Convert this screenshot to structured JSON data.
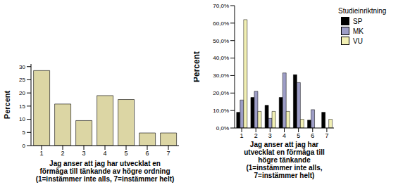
{
  "chart_data": [
    {
      "type": "bar",
      "ylabel": "Percent",
      "xlabel": [
        "Jag anser att jag har utvecklat en",
        "förmåga till tänkande av högre ordning",
        "(1=instämmer inte alls, 7=instämmer helt)"
      ],
      "categories": [
        "1",
        "2",
        "3",
        "4",
        "5",
        "6",
        "7"
      ],
      "values": [
        28.5,
        15.8,
        9.5,
        19,
        17.5,
        4.8,
        4.8
      ],
      "color": "#dcd6a4",
      "ylim": [
        0,
        31
      ],
      "yticks": [
        0,
        5,
        10,
        15,
        20,
        25,
        30
      ],
      "grid": false
    },
    {
      "type": "bar",
      "ylabel": "Percent",
      "xlabel": [
        "Jag anser att jag har",
        "utvecklat en förmåga till",
        "högre tänkande",
        "(1=instämmer inte alls,",
        "7=instämmer helt)"
      ],
      "categories": [
        "1",
        "2",
        "3",
        "4",
        "5",
        "6",
        "7"
      ],
      "series": [
        {
          "name": "SP",
          "color": "#000000",
          "values": [
            9,
            17.5,
            13,
            17.5,
            30.5,
            4.5,
            9
          ]
        },
        {
          "name": "MK",
          "color": "#9d9dc6",
          "values": [
            16,
            21,
            5.5,
            31.5,
            26,
            10.5,
            0
          ]
        },
        {
          "name": "VU",
          "color": "#f2f0b4",
          "values": [
            62,
            9.5,
            9.5,
            9.5,
            5,
            0,
            5
          ]
        }
      ],
      "legend_title": "Studieinriktning",
      "legend": "right",
      "ylim": [
        0,
        70
      ],
      "yticks": [
        {
          "value": 0,
          "label": "0,0%"
        },
        {
          "value": 10,
          "label": "10,0%"
        },
        {
          "value": 20,
          "label": "20,0%"
        },
        {
          "value": 30,
          "label": "30,0%"
        },
        {
          "value": 40,
          "label": "40,0%"
        },
        {
          "value": 50,
          "label": "50,0%"
        },
        {
          "value": 60,
          "label": "60,0%"
        },
        {
          "value": 70,
          "label": "70,0%"
        }
      ],
      "grid": false
    }
  ]
}
